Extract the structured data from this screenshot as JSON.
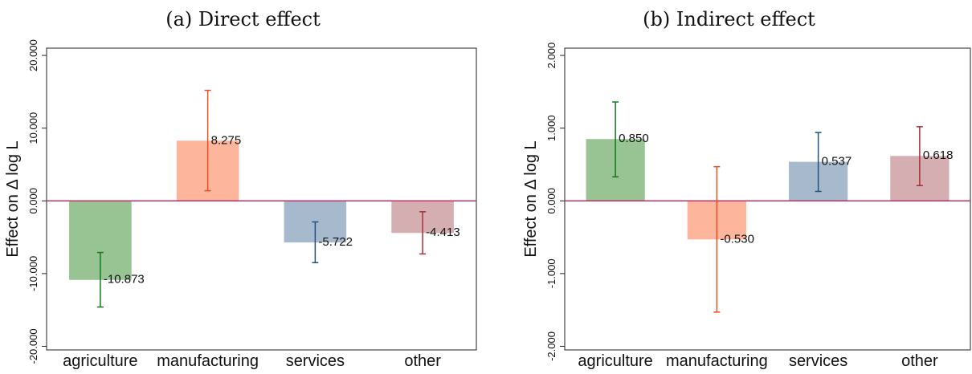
{
  "chart_data": [
    {
      "type": "bar",
      "title": "(a) Direct effect",
      "ylabel": "Effect on Δ log L",
      "ylim": [
        -20.5,
        21
      ],
      "ytick_values": [
        -20,
        -10,
        0,
        10,
        20
      ],
      "ytick_labels": [
        "-20.000",
        "-10.000",
        "0.000",
        "10.000",
        "20.000"
      ],
      "categories": [
        "agriculture",
        "manufacturing",
        "services",
        "other"
      ],
      "values": [
        -10.873,
        8.275,
        -5.722,
        -4.413
      ],
      "value_labels": [
        "-10.873",
        "8.275",
        "-5.722",
        "-4.413"
      ],
      "ci_low": [
        -14.6,
        1.4,
        -8.5,
        -7.3
      ],
      "ci_high": [
        -7.1,
        15.2,
        -2.9,
        -1.5
      ],
      "bar_colors": [
        "#98c493",
        "#fdb59c",
        "#a7b9cc",
        "#d5aeb1"
      ],
      "ci_colors": [
        "#127a18",
        "#e8501e",
        "#234f80",
        "#a82f36"
      ],
      "zero_line_color": "#c0306a"
    },
    {
      "type": "bar",
      "title": "(b) Indirect effect",
      "ylabel": "Effect on Δ log L",
      "ylim": [
        -2.05,
        2.1
      ],
      "ytick_values": [
        -2,
        -1,
        0,
        1,
        2
      ],
      "ytick_labels": [
        "-2.000",
        "-1.000",
        "0.000",
        "1.000",
        "2.000"
      ],
      "categories": [
        "agriculture",
        "manufacturing",
        "services",
        "other"
      ],
      "values": [
        0.85,
        -0.53,
        0.537,
        0.618
      ],
      "value_labels": [
        "0.850",
        "-0.530",
        "0.537",
        "0.618"
      ],
      "ci_low": [
        0.33,
        -1.53,
        0.13,
        0.21
      ],
      "ci_high": [
        1.36,
        0.47,
        0.94,
        1.02
      ],
      "bar_colors": [
        "#98c493",
        "#fdb59c",
        "#a7b9cc",
        "#d5aeb1"
      ],
      "ci_colors": [
        "#127a18",
        "#e8501e",
        "#234f80",
        "#a82f36"
      ],
      "zero_line_color": "#c0306a"
    }
  ]
}
